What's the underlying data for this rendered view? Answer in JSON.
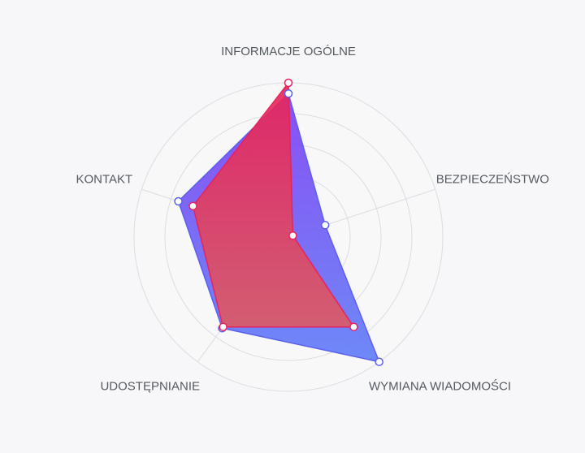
{
  "chart_data": {
    "type": "radar",
    "axes": [
      "INFORMACJE OGÓLNE",
      "BEZPIECZEŃSTWO",
      "WYMIANA WIADOMOŚCI",
      "UDOSTĘPNIANIE",
      "KONTAKT"
    ],
    "rmax": 100,
    "grid": true,
    "grid_rings": 5,
    "series": [
      {
        "values": [
          93,
          25,
          100,
          73,
          75
        ],
        "color": "#5b5ff0",
        "fill_top": "#7e3cf2",
        "fill_bottom": "#5e7df8"
      },
      {
        "values": [
          100,
          3,
          72,
          72,
          65
        ],
        "color": "#e8225a",
        "fill_top": "#e8225a",
        "fill_bottom": "#dd5a63"
      }
    ]
  }
}
